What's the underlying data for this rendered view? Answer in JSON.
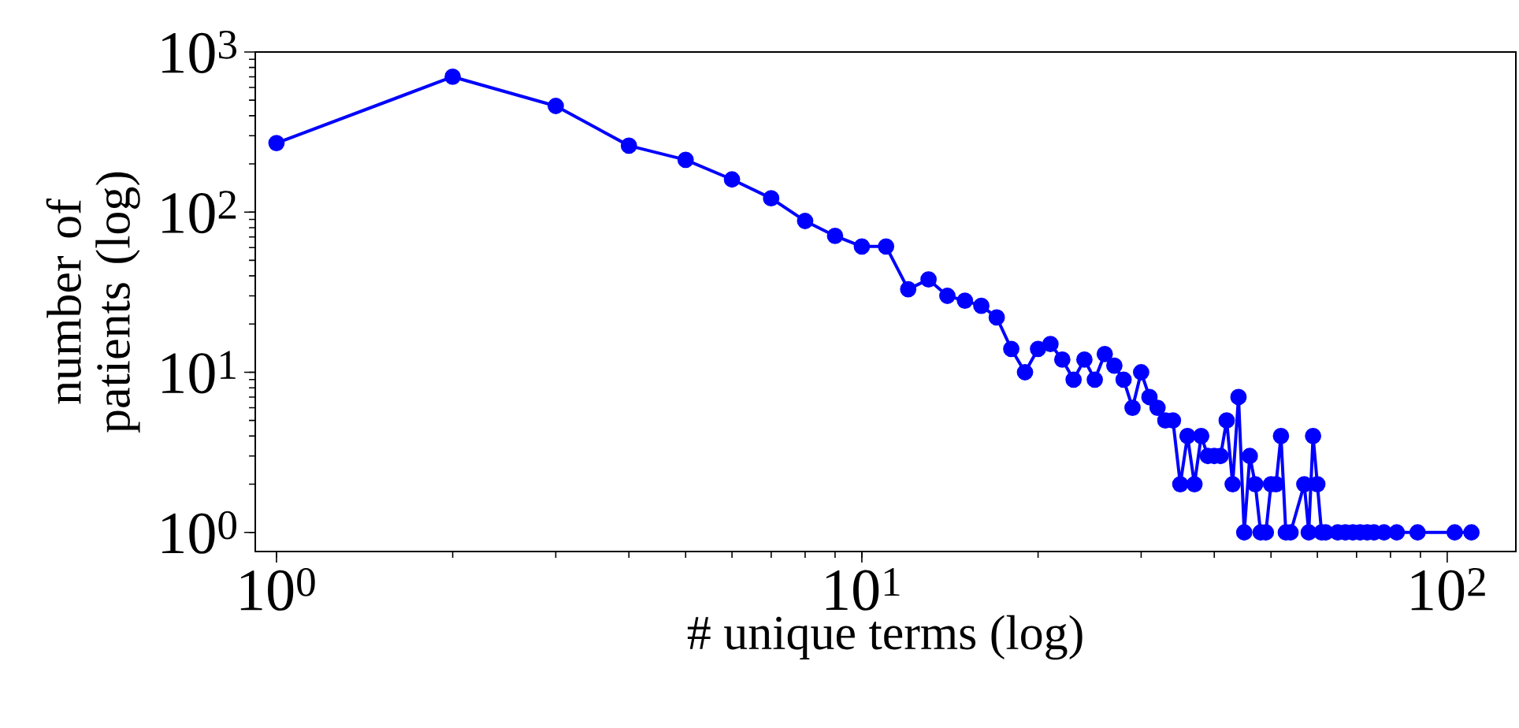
{
  "chart_data": {
    "type": "line",
    "xlabel": "# unique terms (log)",
    "ylabel": "number of patients (log)",
    "log": "xy",
    "marker": "circle",
    "line_style": "solid",
    "xlim": [
      0.92,
      131
    ],
    "ylim": [
      0.76,
      1000
    ],
    "xticks": [
      {
        "value": 1,
        "label": "10$^{0}$"
      },
      {
        "value": 10,
        "label": "10$^{1}$"
      },
      {
        "value": 100,
        "label": "10$^{2}$"
      }
    ],
    "yticks": [
      {
        "value": 1,
        "label": "10$^{0}$"
      },
      {
        "value": 10,
        "label": "10$^{1}$"
      },
      {
        "value": 100,
        "label": "10$^{2}$"
      },
      {
        "value": 1000,
        "label": "10$^{3}$"
      }
    ],
    "series": [
      {
        "color": "#0000ff",
        "x": [
          1,
          2,
          3,
          4,
          5,
          6,
          7,
          8,
          9,
          10,
          11,
          12,
          13,
          14,
          15,
          16,
          17,
          18,
          19,
          20,
          21,
          22,
          23,
          24,
          25,
          26,
          27,
          28,
          29,
          30,
          31,
          32,
          33,
          34,
          35,
          36,
          37,
          38,
          39,
          40,
          41,
          42,
          43,
          44,
          45,
          46,
          47,
          48,
          49,
          50,
          51,
          52,
          53,
          54,
          57,
          58,
          59,
          60,
          61,
          62,
          65,
          67,
          69,
          71,
          73,
          75,
          78,
          82,
          89,
          103,
          110
        ],
        "values": [
          270,
          700,
          460,
          260,
          212,
          160,
          122,
          88,
          71,
          61,
          61,
          33,
          38,
          30,
          28,
          26,
          22,
          14,
          10,
          14,
          15,
          12,
          9,
          12,
          9,
          13,
          11,
          9,
          6,
          10,
          7,
          6,
          5,
          5,
          2,
          4,
          2,
          4,
          3,
          3,
          3,
          5,
          2,
          7,
          1,
          3,
          2,
          1,
          1,
          2,
          2,
          4,
          1,
          1,
          2,
          1,
          4,
          2,
          1,
          1,
          1,
          1,
          1,
          1,
          1,
          1,
          1,
          1,
          1,
          1,
          1
        ]
      }
    ]
  }
}
